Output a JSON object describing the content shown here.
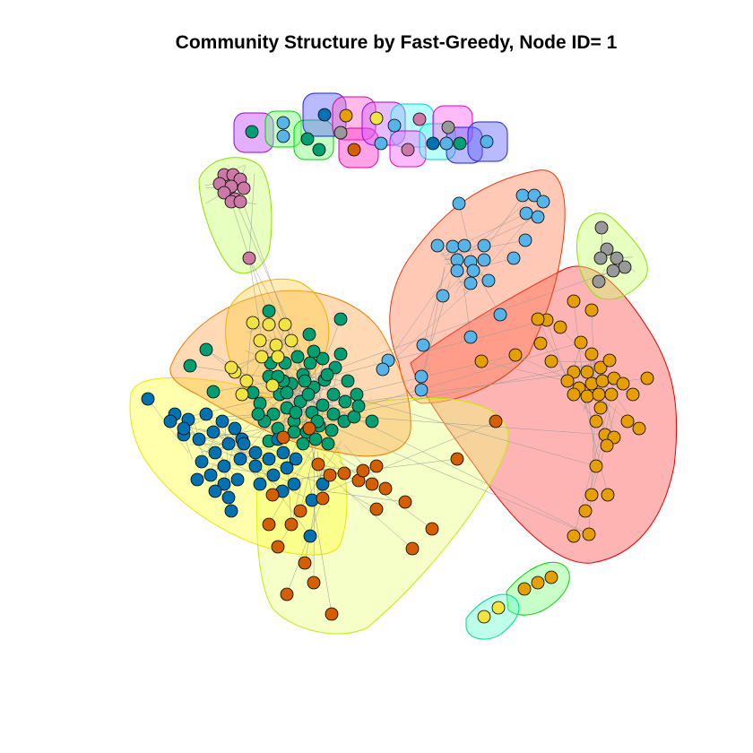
{
  "title": "Community Structure by Fast-Greedy, Node ID= 1",
  "node_colors": {
    "green": "#009E73",
    "blue": "#0072B2",
    "yellow": "#F0E442",
    "vermillion": "#D55E00",
    "orange": "#E69F00",
    "sky": "#56B4E9",
    "pink": "#CC79A7",
    "grey": "#999999"
  },
  "communities": [
    {
      "id": "red-orange-orange-nodes",
      "fill": "#ff4d4d",
      "stroke": "#e00000",
      "node_color": "orange"
    },
    {
      "id": "salmon-sky-nodes",
      "fill": "#ff7f50",
      "stroke": "#e03a10",
      "node_color": "sky"
    },
    {
      "id": "orange-green-nodes",
      "fill": "#ffa64d",
      "stroke": "#ee7a00",
      "node_color": "green"
    },
    {
      "id": "yellow-blue-nodes",
      "fill": "#ffff3a",
      "stroke": "#e8e800",
      "node_color": "blue"
    },
    {
      "id": "lightyellow-vermillion-nodes",
      "fill": "#eaff7a",
      "stroke": "#c8e800",
      "node_color": "vermillion"
    },
    {
      "id": "gold-yellow-nodes",
      "fill": "#ffd24d",
      "stroke": "#f0b000",
      "node_color": "yellow"
    },
    {
      "id": "lime-pink-nodes",
      "fill": "#c5ff66",
      "stroke": "#8ce000",
      "node_color": "pink"
    },
    {
      "id": "lime-grey-nodes",
      "fill": "#c5ff66",
      "stroke": "#8ce000",
      "node_color": "grey"
    },
    {
      "id": "small-green-pair",
      "fill": "#7dff7d",
      "stroke": "#00d000",
      "node_color": "orange"
    },
    {
      "id": "small-aqua-pair",
      "fill": "#66ffcc",
      "stroke": "#00d69a",
      "node_color": "yellow"
    }
  ]
}
